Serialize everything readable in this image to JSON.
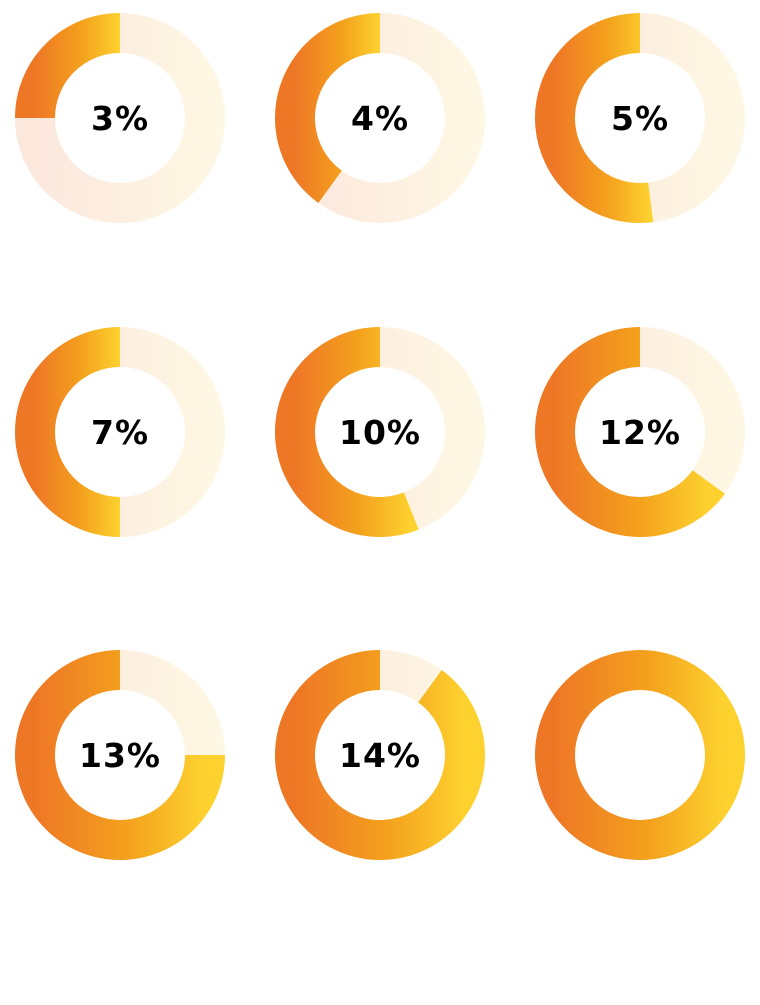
{
  "chart_data": {
    "type": "donut-gauge-grid",
    "gauges": [
      {
        "label": "3%",
        "fill_fraction": 0.25
      },
      {
        "label": "4%",
        "fill_fraction": 0.4
      },
      {
        "label": "5%",
        "fill_fraction": 0.52
      },
      {
        "label": "7%",
        "fill_fraction": 0.5
      },
      {
        "label": "10%",
        "fill_fraction": 0.56
      },
      {
        "label": "12%",
        "fill_fraction": 0.65
      },
      {
        "label": "13%",
        "fill_fraction": 0.75
      },
      {
        "label": "14%",
        "fill_fraction": 0.9
      },
      {
        "label": "",
        "fill_fraction": 1.0
      }
    ],
    "colors": {
      "fill_start": "#EE7726",
      "fill_mid": "#F4A11D",
      "fill_end": "#FDD22F",
      "track": "#FCEBDC",
      "label": "#000000"
    }
  }
}
